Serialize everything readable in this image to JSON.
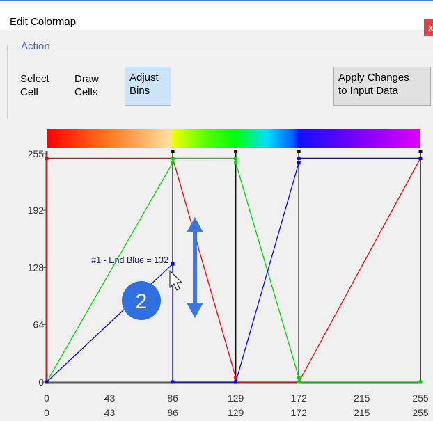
{
  "window": {
    "title": "Edit Colormap",
    "close_label": "x"
  },
  "action_group": {
    "label": "Action"
  },
  "toolbar": {
    "select_cell": [
      "Select",
      "Cell"
    ],
    "draw_cells": [
      "Draw",
      "Cells"
    ],
    "adjust_bins": [
      "Adjust",
      "Bins"
    ],
    "apply_changes": [
      "Apply Changes",
      "to Input Data"
    ],
    "active_tool": "Adjust Bins"
  },
  "tooltip": {
    "text": "#1 - End Blue = 132"
  },
  "step_badge": {
    "text": "2"
  },
  "colors": {
    "red": "#ff0000",
    "green": "#00d400",
    "blue": "#0000ff",
    "badge": "#2f6fe0",
    "accent": "#2f6ecf",
    "arrow": "#3a78e0"
  },
  "chart_data": {
    "type": "line",
    "xlim": [
      0,
      255
    ],
    "ylim": [
      0,
      255
    ],
    "y_ticks": [
      0,
      64,
      128,
      192,
      255
    ],
    "x_ticks_row1": [
      0,
      43,
      86,
      129,
      172,
      215,
      255
    ],
    "x_ticks_row2": [
      0,
      43,
      86,
      129,
      172,
      215,
      255
    ],
    "bin_boundaries": [
      86,
      129,
      172,
      255
    ],
    "colorbar_stops": [
      {
        "x": 0,
        "color": "#ff0000"
      },
      {
        "x": 43,
        "color": "#ff7a22"
      },
      {
        "x": 84,
        "color": "#ffe0a0"
      },
      {
        "x": 86,
        "color": "#f0ff00"
      },
      {
        "x": 110,
        "color": "#50ff00"
      },
      {
        "x": 129,
        "color": "#00ff10"
      },
      {
        "x": 150,
        "color": "#00e0ff"
      },
      {
        "x": 168,
        "color": "#0060ff"
      },
      {
        "x": 172,
        "color": "#1010ff"
      },
      {
        "x": 215,
        "color": "#8000ff"
      },
      {
        "x": 255,
        "color": "#e000ff"
      }
    ],
    "series": [
      {
        "name": "Red",
        "color": "#ff0000",
        "x": [
          0,
          0,
          86,
          129,
          129,
          172,
          172,
          255
        ],
        "y": [
          0,
          250,
          250,
          5,
          0,
          0,
          0,
          250
        ]
      },
      {
        "name": "Green",
        "color": "#00d400",
        "x": [
          0,
          86,
          86,
          129,
          129,
          172,
          172,
          255
        ],
        "y": [
          0,
          245,
          250,
          250,
          245,
          5,
          0,
          0
        ]
      },
      {
        "name": "Blue",
        "color": "#0000ff",
        "x": [
          0,
          86,
          86,
          129,
          129,
          172,
          172,
          255
        ],
        "y": [
          0,
          132,
          0,
          0,
          0,
          245,
          250,
          250
        ]
      }
    ],
    "selected_point": {
      "series": "Blue",
      "x": 86,
      "y": 132
    }
  }
}
